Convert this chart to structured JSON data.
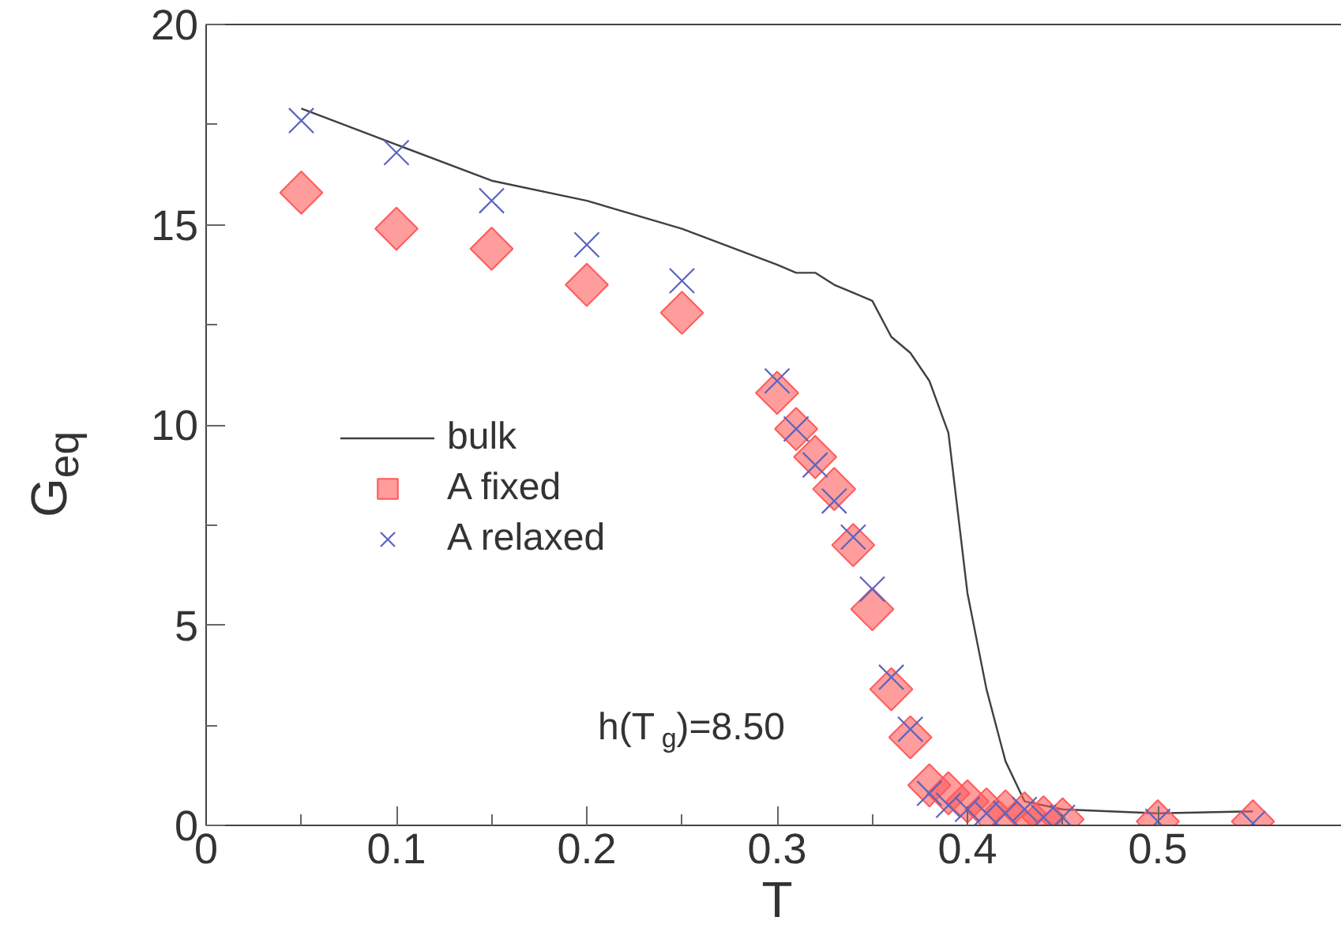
{
  "chart_data": {
    "type": "scatter",
    "xlabel": "T",
    "ylabel": "G$_{eq}$",
    "xlim": [
      0,
      0.6
    ],
    "ylim": [
      0,
      20
    ],
    "xticks": [
      0,
      0.1,
      0.2,
      0.3,
      0.4,
      0.5
    ],
    "yticks": [
      0,
      5,
      10,
      15,
      20
    ],
    "grid": false,
    "legend": "left",
    "annotations": [
      "h(T$_{g}$)=8.50"
    ],
    "series": [
      {
        "name": "bulk",
        "type": "line",
        "color": "#404040",
        "marker": "none",
        "x": [
          0.05,
          0.1,
          0.15,
          0.2,
          0.25,
          0.3,
          0.31,
          0.32,
          0.33,
          0.34,
          0.35,
          0.36,
          0.37,
          0.38,
          0.39,
          0.4,
          0.41,
          0.42,
          0.43,
          0.45,
          0.5,
          0.55
        ],
        "values": [
          17.9,
          17.0,
          16.1,
          15.6,
          14.9,
          14.0,
          13.8,
          13.8,
          13.5,
          13.3,
          13.1,
          12.2,
          11.8,
          11.1,
          9.8,
          5.8,
          3.4,
          1.6,
          0.6,
          0.4,
          0.3,
          0.35
        ]
      },
      {
        "name": "A fixed",
        "color": "#ff5a5a",
        "marker": "diamond",
        "x": [
          0.05,
          0.1,
          0.15,
          0.2,
          0.25,
          0.3,
          0.31,
          0.32,
          0.33,
          0.34,
          0.35,
          0.36,
          0.37,
          0.38,
          0.39,
          0.4,
          0.41,
          0.42,
          0.43,
          0.44,
          0.45,
          0.5,
          0.55
        ],
        "values": [
          15.8,
          14.9,
          14.4,
          13.5,
          12.8,
          10.8,
          9.9,
          9.2,
          8.4,
          7.0,
          5.4,
          3.4,
          2.2,
          1.0,
          0.8,
          0.6,
          0.4,
          0.35,
          0.3,
          0.2,
          0.15,
          0.1,
          0.1
        ]
      },
      {
        "name": "A relaxed",
        "color": "#5a64c0",
        "marker": "cross",
        "x": [
          0.05,
          0.1,
          0.15,
          0.2,
          0.25,
          0.3,
          0.31,
          0.32,
          0.33,
          0.34,
          0.35,
          0.36,
          0.37,
          0.38,
          0.39,
          0.4,
          0.41,
          0.42,
          0.43,
          0.44,
          0.45,
          0.5,
          0.55
        ],
        "values": [
          17.6,
          16.8,
          15.6,
          14.5,
          13.6,
          11.1,
          9.9,
          9.0,
          8.1,
          7.2,
          5.9,
          3.7,
          2.4,
          0.8,
          0.5,
          0.4,
          0.3,
          0.3,
          0.4,
          0.2,
          0.2,
          0.1,
          0.05
        ]
      }
    ]
  }
}
